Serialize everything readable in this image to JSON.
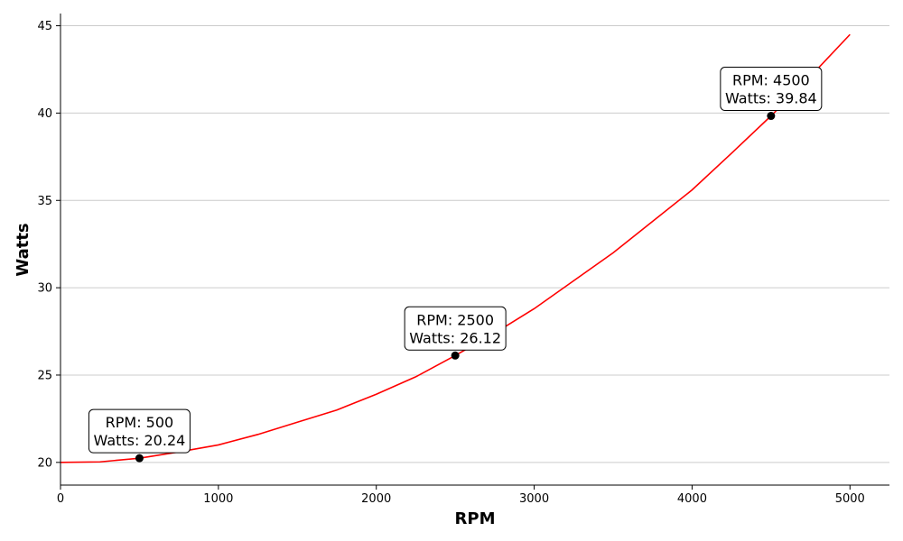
{
  "chart_data": {
    "type": "line",
    "xlabel": "RPM",
    "ylabel": "Watts",
    "xlim": [
      0,
      5250
    ],
    "ylim": [
      18.7,
      45.7
    ],
    "xticks": [
      0,
      1000,
      2000,
      3000,
      4000,
      5000
    ],
    "yticks": [
      20,
      25,
      30,
      35,
      40,
      45
    ],
    "grid": "horizontal",
    "series": [
      {
        "color": "#ff0000",
        "x": [
          0,
          250,
          500,
          750,
          1000,
          1250,
          1500,
          1750,
          2000,
          2250,
          2500,
          2750,
          3000,
          3250,
          3500,
          3750,
          4000,
          4250,
          4500,
          4750,
          5000
        ],
        "y": [
          20.0,
          20.03,
          20.24,
          20.6,
          21.0,
          21.6,
          22.3,
          23.0,
          23.9,
          24.9,
          26.12,
          27.4,
          28.8,
          30.4,
          32.0,
          33.8,
          35.6,
          37.7,
          39.84,
          42.1,
          44.5
        ]
      }
    ],
    "markers": [
      {
        "x": 500,
        "y": 20.24,
        "line1": "RPM: 500",
        "line2": "Watts: 20.24"
      },
      {
        "x": 2500,
        "y": 26.12,
        "line1": "RPM: 2500",
        "line2": "Watts: 26.12"
      },
      {
        "x": 4500,
        "y": 39.84,
        "line1": "RPM: 4500",
        "line2": "Watts: 39.84"
      }
    ]
  }
}
